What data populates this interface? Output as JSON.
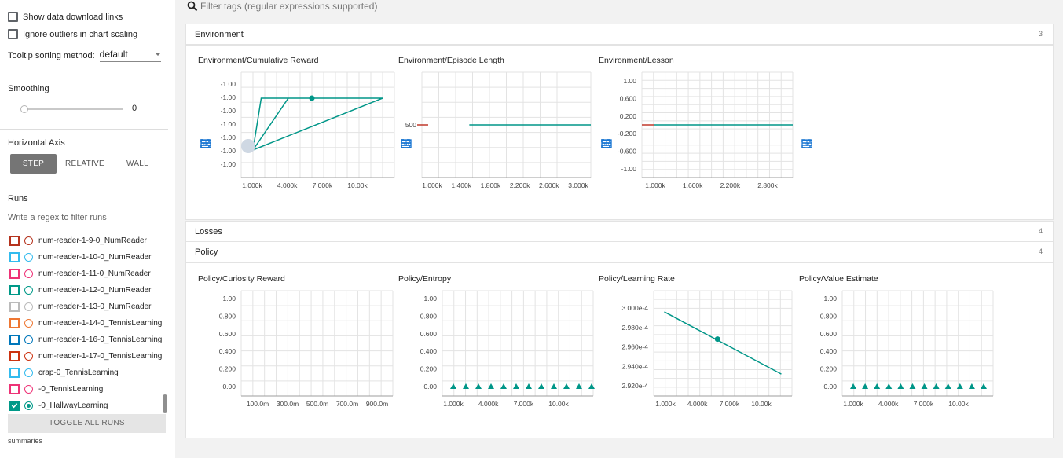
{
  "sidebar": {
    "show_download_label": "Show data download links",
    "ignore_outliers_label": "Ignore outliers in chart scaling",
    "tooltip_label": "Tooltip sorting method:",
    "tooltip_value": "default",
    "smoothing_title": "Smoothing",
    "smoothing_value": "0",
    "axis_title": "Horizontal Axis",
    "axis_step": "STEP",
    "axis_relative": "RELATIVE",
    "axis_wall": "WALL",
    "runs_title": "Runs",
    "runs_filter_placeholder": "Write a regex to filter runs",
    "toggle_all": "TOGGLE ALL RUNS",
    "summaries": "summaries",
    "runs": [
      {
        "label": "num-reader-1-9-0_NumReader",
        "color": "#b5331e",
        "checked": false
      },
      {
        "label": "num-reader-1-10-0_NumReader",
        "color": "#33bbee",
        "checked": false
      },
      {
        "label": "num-reader-1-11-0_NumReader",
        "color": "#ee3377",
        "checked": false
      },
      {
        "label": "num-reader-1-12-0_NumReader",
        "color": "#009988",
        "checked": false
      },
      {
        "label": "num-reader-1-13-0_NumReader",
        "color": "#bbbbbb",
        "checked": false
      },
      {
        "label": "num-reader-1-14-0_TennisLearning",
        "color": "#ee7733",
        "checked": false
      },
      {
        "label": "num-reader-1-16-0_TennisLearning",
        "color": "#0077bb",
        "checked": false
      },
      {
        "label": "num-reader-1-17-0_TennisLearning",
        "color": "#cc3311",
        "checked": false
      },
      {
        "label": "crap-0_TennisLearning",
        "color": "#33bbee",
        "checked": false
      },
      {
        "label": "-0_TennisLearning",
        "color": "#ee3377",
        "checked": false
      },
      {
        "label": "-0_HallwayLearning",
        "color": "#009988",
        "checked": true
      }
    ]
  },
  "filter": {
    "placeholder": "Filter tags (regular expressions supported)"
  },
  "categories": [
    {
      "name": "Environment",
      "count": "3"
    },
    {
      "name": "Losses",
      "count": "4"
    },
    {
      "name": "Policy",
      "count": "4"
    }
  ],
  "colors": {
    "accent": "#009688",
    "flat_line": "#c0392b"
  },
  "chart_data": [
    {
      "title": "Environment/Cumulative Reward",
      "type": "line",
      "x": [
        1000,
        1700,
        4000,
        6000,
        12000
      ],
      "xlim": [
        0,
        13000
      ],
      "xticks": [
        "1.000k",
        "4.000k",
        "7.000k",
        "10.00k"
      ],
      "yticks": [
        "-1.00",
        "-1.00",
        "-1.00",
        "-1.00",
        "-1.00",
        "-1.00",
        "-1.00"
      ],
      "ylabel": "",
      "xlabel": ""
    },
    {
      "title": "Environment/Episode Length",
      "type": "line",
      "x": [
        1000,
        3000
      ],
      "y": [
        500,
        500
      ],
      "xlim": [
        0,
        3100
      ],
      "xticks": [
        "1.000k",
        "1.400k",
        "1.800k",
        "2.200k",
        "2.600k",
        "3.000k"
      ],
      "yticks": [
        "500"
      ]
    },
    {
      "title": "Environment/Lesson",
      "type": "line",
      "x": [
        1000,
        3000
      ],
      "y": [
        0,
        0
      ],
      "xlim": [
        0,
        3100
      ],
      "xticks": [
        "1.000k",
        "1.600k",
        "2.200k",
        "2.800k"
      ],
      "yticks": [
        "1.00",
        "0.600",
        "0.200",
        "-0.200",
        "-0.600",
        "-1.00"
      ]
    },
    {
      "title": "Policy/Curiosity Reward",
      "type": "line",
      "x": [],
      "y": [],
      "xticks": [
        "100.0m",
        "300.0m",
        "500.0m",
        "700.0m",
        "900.0m"
      ],
      "yticks": [
        "1.00",
        "0.800",
        "0.600",
        "0.400",
        "0.200",
        "0.00"
      ]
    },
    {
      "title": "Policy/Entropy",
      "type": "line",
      "x": [
        1000,
        2000,
        3000,
        4000,
        5000,
        6000,
        7000,
        8000,
        9000,
        10000,
        11000,
        12000
      ],
      "y": [
        0,
        0,
        0,
        0,
        0,
        0,
        0,
        0,
        0,
        0,
        0,
        0
      ],
      "xlim": [
        0,
        13000
      ],
      "xticks": [
        "1.000k",
        "4.000k",
        "7.000k",
        "10.00k"
      ],
      "yticks": [
        "1.00",
        "0.800",
        "0.600",
        "0.400",
        "0.200",
        "0.00"
      ]
    },
    {
      "title": "Policy/Learning Rate",
      "type": "line",
      "x": [
        1000,
        6000,
        12000
      ],
      "y": [
        0.0002996,
        0.0002968,
        0.0002932
      ],
      "xlim": [
        0,
        13000
      ],
      "xticks": [
        "1.000k",
        "4.000k",
        "7.000k",
        "10.00k"
      ],
      "yticks": [
        "3.000e-4",
        "2.980e-4",
        "2.960e-4",
        "2.940e-4",
        "2.920e-4"
      ]
    },
    {
      "title": "Policy/Value Estimate",
      "type": "line",
      "x": [
        1000,
        2000,
        3000,
        4000,
        5000,
        6000,
        7000,
        8000,
        9000,
        10000,
        11000,
        12000
      ],
      "y": [
        0,
        0,
        0,
        0,
        0,
        0,
        0,
        0,
        0,
        0,
        0,
        0
      ],
      "xlim": [
        0,
        13000
      ],
      "xticks": [
        "1.000k",
        "4.000k",
        "7.000k",
        "10.00k"
      ],
      "yticks": [
        "1.00",
        "0.800",
        "0.600",
        "0.400",
        "0.200",
        "0.00"
      ]
    }
  ]
}
